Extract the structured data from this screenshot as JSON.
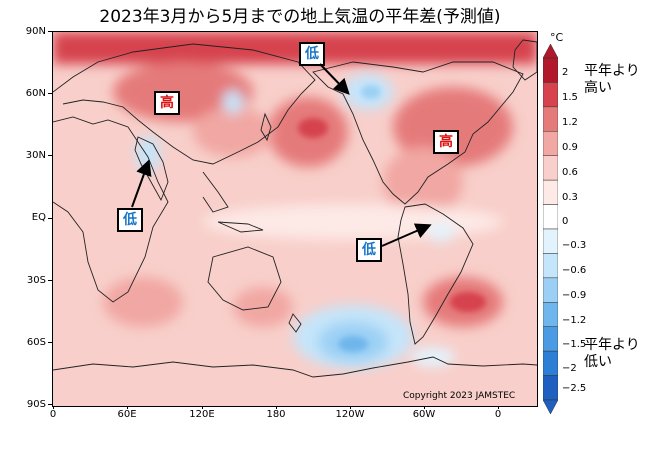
{
  "title": "2023年3月から5月までの地上気温の平年差(予測値)",
  "map": {
    "lat_labels": [
      "90N",
      "60N",
      "30N",
      "EQ",
      "30S",
      "60S",
      "90S"
    ],
    "lon_labels": [
      "0",
      "60E",
      "120E",
      "180",
      "120W",
      "60W",
      "0"
    ],
    "copyright": "Copyright 2023 JAMSTEC",
    "tags": {
      "high_greenland": "高",
      "high_siberia": "高",
      "low_alaska": "低",
      "low_india": "低",
      "low_amazon": "低",
      "high_atlantic": "高"
    }
  },
  "legend": {
    "unit": "°C",
    "ticks": [
      "2",
      "1.5",
      "1.2",
      "0.9",
      "0.6",
      "0.3",
      "0",
      "−0.3",
      "−0.6",
      "−0.9",
      "−1.2",
      "−1.5",
      "−2",
      "−2.5"
    ],
    "above_note": "平年より\n高い",
    "below_note": "平年より\n低い",
    "colors": [
      "#b2182b",
      "#d6434e",
      "#e57a7a",
      "#f1a7a3",
      "#f8cfca",
      "#fde9e6",
      "#ffffff",
      "#e3f3fd",
      "#c5e5fa",
      "#9bd0f4",
      "#6fb6ec",
      "#4a9be3",
      "#2d7fd6",
      "#1f5fbf"
    ]
  }
}
